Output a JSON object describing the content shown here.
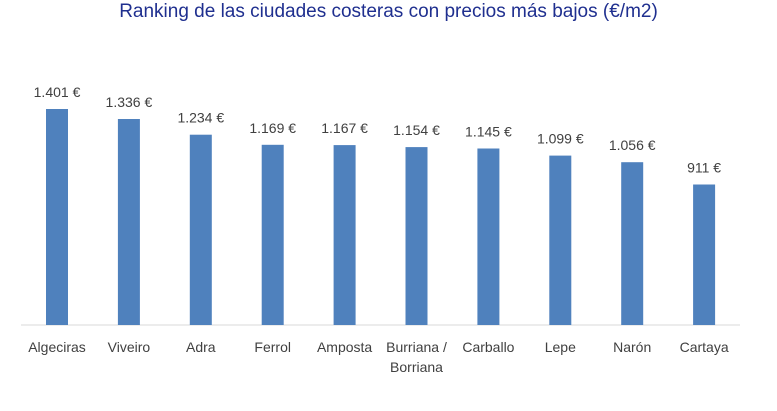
{
  "chart_data": {
    "type": "bar",
    "title": "Ranking de las ciudades costeras con precios más bajos (€/m2)",
    "categories": [
      "Algeciras",
      "Viveiro",
      "Adra",
      "Ferrol",
      "Amposta",
      "Burriana / Borriana",
      "Carballo",
      "Lepe",
      "Narón",
      "Cartaya"
    ],
    "category_label_lines": [
      [
        "Algeciras"
      ],
      [
        "Viveiro"
      ],
      [
        "Adra"
      ],
      [
        "Ferrol"
      ],
      [
        "Amposta"
      ],
      [
        "Burriana /",
        "Borriana"
      ],
      [
        "Carballo"
      ],
      [
        "Lepe"
      ],
      [
        "Narón"
      ],
      [
        "Cartaya"
      ]
    ],
    "values": [
      1401,
      1336,
      1234,
      1169,
      1167,
      1154,
      1145,
      1099,
      1056,
      911
    ],
    "data_labels": [
      "1.401 €",
      "1.336 €",
      "1.234 €",
      "1.169 €",
      "1.167 €",
      "1.154 €",
      "1.145 €",
      "1.099 €",
      "1.056 €",
      "911 €"
    ],
    "ylim": [
      0,
      1401
    ],
    "grid": false,
    "legend": "none",
    "colors": {
      "bar": "#4f81bd",
      "title": "#1f2f8f",
      "text": "#404040",
      "axis": "#d9d9d9"
    }
  }
}
